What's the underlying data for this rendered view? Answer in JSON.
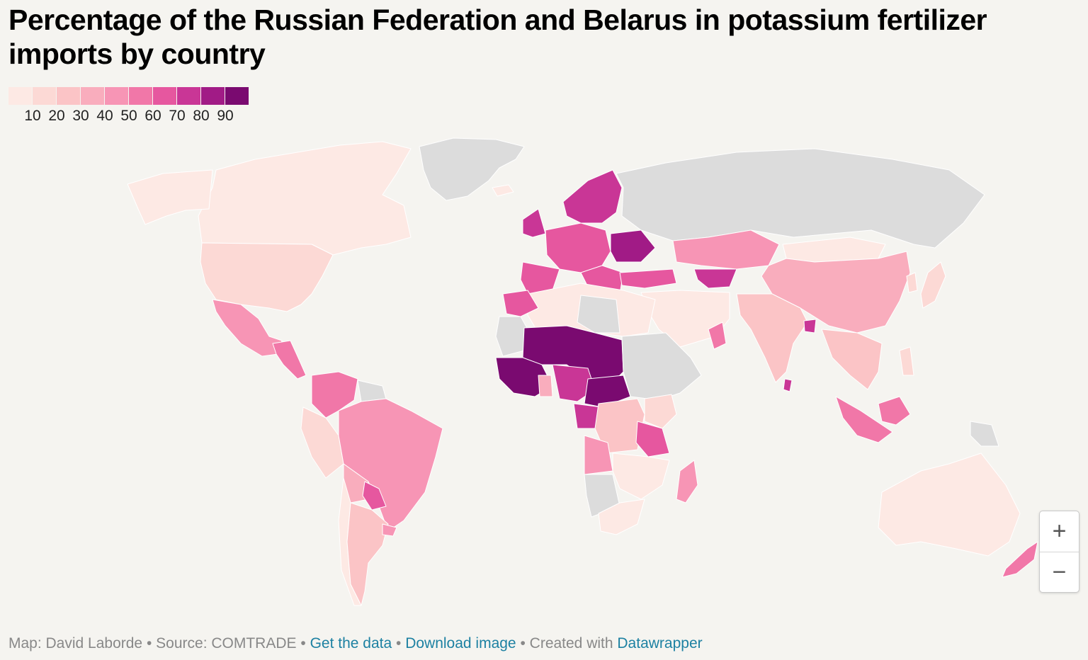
{
  "title": "Percentage of the Russian Federation and Belarus in potassium fertilizer imports by country",
  "legend": {
    "colors": [
      "#fde9e4",
      "#fcd9d5",
      "#fbc4c6",
      "#f9adbd",
      "#f795b5",
      "#f177a8",
      "#e6579f",
      "#c93696",
      "#a11b86",
      "#7a0a70"
    ],
    "labels": [
      "10",
      "20",
      "30",
      "40",
      "50",
      "60",
      "70",
      "80",
      "90"
    ]
  },
  "no_data_color": "#dcdcdc",
  "zoom": {
    "in_label": "+",
    "out_label": "−"
  },
  "footer": {
    "credit": "Map: David Laborde",
    "sep1": " • ",
    "source": "Source: COMTRADE",
    "sep2": " • ",
    "get_data": "Get the data",
    "sep3": " • ",
    "download": "Download image",
    "sep4": " • ",
    "created": "Created with ",
    "datawrapper": "Datawrapper"
  }
}
